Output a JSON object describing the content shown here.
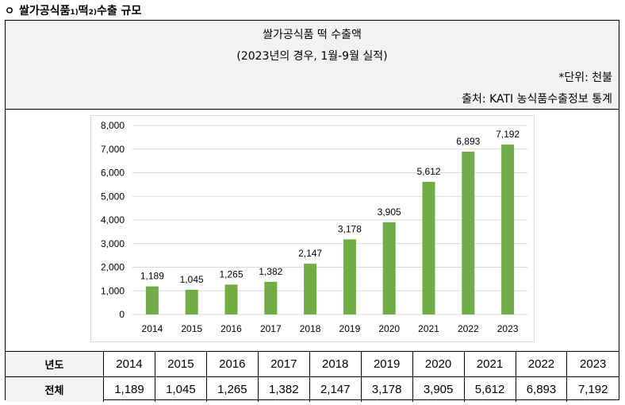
{
  "heading": {
    "bullet": "ㅇ",
    "part1": "쌀가공식품",
    "sup1": "1)",
    "part2": " 떡",
    "sup2": "2)",
    "part3": " 수출 규모"
  },
  "header": {
    "title": "쌀가공식품 떡 수출액",
    "subtitle": "(2023년의 경우, 1월-9월 실적)",
    "unit": "*단위: 천불",
    "source": "출처: KATI 농식품수출정보 통계"
  },
  "colors": {
    "bar": "#70ad47",
    "header_bg": "#f2f2f2",
    "grid": "#d9d9d9"
  },
  "chart_data": {
    "type": "bar",
    "title": "",
    "xlabel": "",
    "ylabel": "",
    "categories": [
      "2014",
      "2015",
      "2016",
      "2017",
      "2018",
      "2019",
      "2020",
      "2021",
      "2022",
      "2023"
    ],
    "values": [
      1189,
      1045,
      1265,
      1382,
      2147,
      3178,
      3905,
      5612,
      6893,
      7192
    ],
    "value_labels": [
      "1,189",
      "1,045",
      "1,265",
      "1,382",
      "2,147",
      "3,178",
      "3,905",
      "5,612",
      "6,893",
      "7,192"
    ],
    "ylim": [
      0,
      8000
    ],
    "yticks": [
      0,
      1000,
      2000,
      3000,
      4000,
      5000,
      6000,
      7000,
      8000
    ],
    "ytick_labels": [
      "0",
      "1,000",
      "2,000",
      "3,000",
      "4,000",
      "5,000",
      "6,000",
      "7,000",
      "8,000"
    ],
    "grid": true
  },
  "table": {
    "header_label": "년도",
    "row_label": "전체",
    "years": [
      "2014",
      "2015",
      "2016",
      "2017",
      "2018",
      "2019",
      "2020",
      "2021",
      "2022",
      "2023"
    ],
    "values": [
      "1,189",
      "1,045",
      "1,265",
      "1,382",
      "2,147",
      "3,178",
      "3,905",
      "5,612",
      "6,893",
      "7,192"
    ]
  }
}
